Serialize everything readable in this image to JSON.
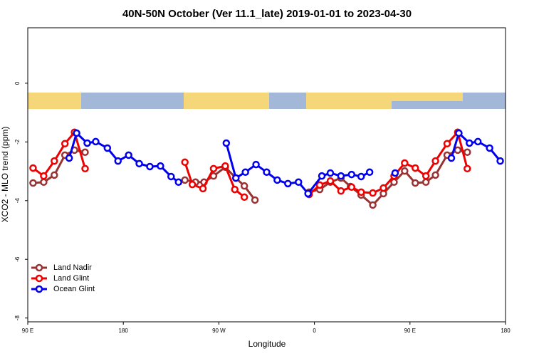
{
  "chart_data": {
    "type": "line",
    "title": "40N-50N October (Ver 11.1_late)   2019-01-01 to 2023-04-30",
    "x_label": "Longitude",
    "y_label": "XCO2 - MLO trend (ppm)",
    "xlim": [
      90,
      540
    ],
    "ylim": [
      -8.13,
      1.89
    ],
    "xticks": [
      {
        "value": 90,
        "label": "90 E"
      },
      {
        "value": 180,
        "label": "180"
      },
      {
        "value": 270,
        "label": "90 W"
      },
      {
        "value": 360,
        "label": "0"
      },
      {
        "value": 450,
        "label": "90 E"
      },
      {
        "value": 540,
        "label": "180"
      }
    ],
    "yticks": [
      0,
      -2,
      -4,
      -6,
      -8
    ],
    "legend_position": "lower-left",
    "series": [
      {
        "name": "Land Nadir",
        "color": "#993333",
        "x": [
          95,
          105,
          115,
          125,
          134,
          144,
          null,
          238,
          248,
          256,
          265,
          276,
          286,
          294,
          304,
          null,
          355,
          365,
          375,
          385,
          394,
          404,
          415,
          425,
          435,
          445,
          455,
          465,
          474,
          485,
          495,
          504
        ],
        "values": [
          -3.4,
          -3.37,
          -3.13,
          -2.45,
          -2.28,
          -2.35,
          null,
          -3.3,
          -3.37,
          -3.37,
          -3.16,
          -2.86,
          -3.23,
          -3.5,
          -3.98,
          null,
          -3.71,
          -3.62,
          -3.37,
          -3.23,
          -3.52,
          -3.81,
          -4.15,
          -3.76,
          -3.37,
          -2.99,
          -3.4,
          -3.37,
          -3.13,
          -2.45,
          -2.28,
          -2.35
        ]
      },
      {
        "name": "Land Glint",
        "color": "#ee0000",
        "x": [
          95,
          105,
          115,
          125,
          134,
          144,
          null,
          238,
          245,
          255,
          265,
          276,
          285,
          294,
          null,
          355,
          365,
          375,
          385,
          395,
          404,
          415,
          425,
          435,
          445,
          455,
          465,
          474,
          485,
          495,
          504
        ],
        "values": [
          -2.89,
          -3.16,
          -2.65,
          -2.06,
          -1.67,
          -2.91,
          null,
          -2.69,
          -3.45,
          -3.59,
          -2.91,
          -2.82,
          -3.62,
          -3.88,
          null,
          -3.79,
          -3.47,
          -3.33,
          -3.67,
          -3.54,
          -3.71,
          -3.74,
          -3.57,
          -3.16,
          -2.72,
          -2.89,
          -3.16,
          -2.65,
          -2.06,
          -1.67,
          -2.91
        ]
      },
      {
        "name": "Ocean Glint",
        "color": "#0000ee",
        "x": [
          129,
          136,
          146,
          154,
          165,
          175,
          185,
          195,
          205,
          215,
          225,
          232,
          null,
          277,
          286,
          295,
          305,
          315,
          325,
          335,
          345,
          354,
          367,
          375,
          385,
          395,
          404,
          412,
          null,
          436,
          null,
          489,
          496,
          506,
          514,
          525,
          535
        ],
        "values": [
          -2.55,
          -1.7,
          -2.04,
          -1.99,
          -2.21,
          -2.65,
          -2.45,
          -2.74,
          -2.84,
          -2.82,
          -3.18,
          -3.37,
          null,
          -2.04,
          -3.23,
          -3.03,
          -2.77,
          -3.03,
          -3.3,
          -3.42,
          -3.37,
          -3.76,
          -3.16,
          -3.06,
          -3.16,
          -3.11,
          -3.18,
          -3.03,
          null,
          -3.06,
          null,
          -2.55,
          -1.7,
          -2.04,
          -1.99,
          -2.21,
          -2.65
        ]
      }
    ]
  }
}
